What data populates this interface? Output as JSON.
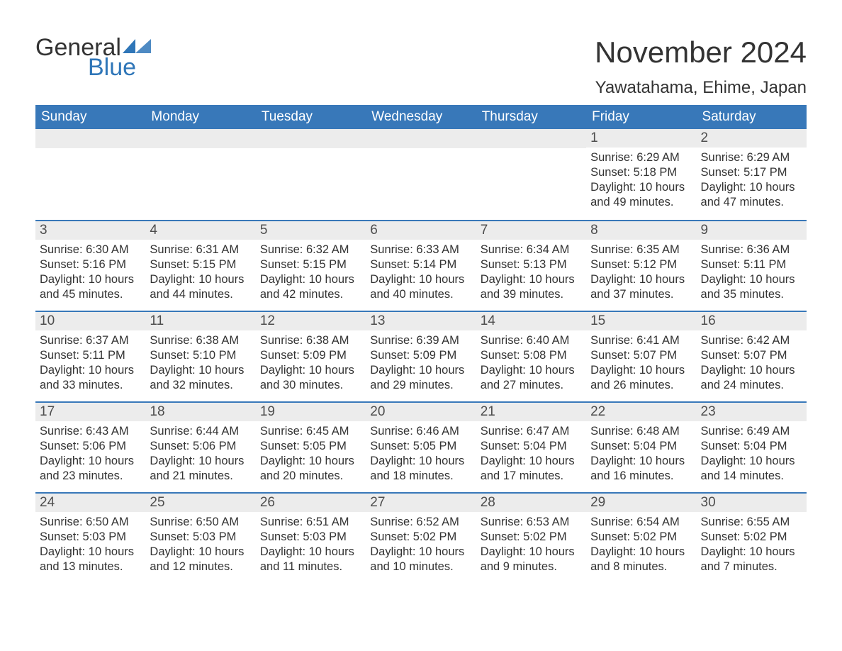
{
  "logo": {
    "word1": "General",
    "word2": "Blue",
    "word1_color": "#333333",
    "word2_color": "#2f76b8",
    "triangle_color": "#2f76b8"
  },
  "title": "November 2024",
  "location": "Yawatahama, Ehime, Japan",
  "colors": {
    "header_bg": "#3878b9",
    "header_text": "#ffffff",
    "daynum_bg": "#ececec",
    "daynum_text": "#4d4d4d",
    "body_text": "#333333",
    "rule": "#3878b9",
    "page_bg": "#ffffff"
  },
  "fonts": {
    "title_size": 42,
    "location_size": 24,
    "dow_size": 19,
    "daynum_size": 19,
    "body_size": 16.5
  },
  "days_of_week": [
    "Sunday",
    "Monday",
    "Tuesday",
    "Wednesday",
    "Thursday",
    "Friday",
    "Saturday"
  ],
  "weeks": [
    [
      {
        "day": null
      },
      {
        "day": null
      },
      {
        "day": null
      },
      {
        "day": null
      },
      {
        "day": null
      },
      {
        "day": "1",
        "sunrise": "Sunrise: 6:29 AM",
        "sunset": "Sunset: 5:18 PM",
        "daylight1": "Daylight: 10 hours",
        "daylight2": "and 49 minutes."
      },
      {
        "day": "2",
        "sunrise": "Sunrise: 6:29 AM",
        "sunset": "Sunset: 5:17 PM",
        "daylight1": "Daylight: 10 hours",
        "daylight2": "and 47 minutes."
      }
    ],
    [
      {
        "day": "3",
        "sunrise": "Sunrise: 6:30 AM",
        "sunset": "Sunset: 5:16 PM",
        "daylight1": "Daylight: 10 hours",
        "daylight2": "and 45 minutes."
      },
      {
        "day": "4",
        "sunrise": "Sunrise: 6:31 AM",
        "sunset": "Sunset: 5:15 PM",
        "daylight1": "Daylight: 10 hours",
        "daylight2": "and 44 minutes."
      },
      {
        "day": "5",
        "sunrise": "Sunrise: 6:32 AM",
        "sunset": "Sunset: 5:15 PM",
        "daylight1": "Daylight: 10 hours",
        "daylight2": "and 42 minutes."
      },
      {
        "day": "6",
        "sunrise": "Sunrise: 6:33 AM",
        "sunset": "Sunset: 5:14 PM",
        "daylight1": "Daylight: 10 hours",
        "daylight2": "and 40 minutes."
      },
      {
        "day": "7",
        "sunrise": "Sunrise: 6:34 AM",
        "sunset": "Sunset: 5:13 PM",
        "daylight1": "Daylight: 10 hours",
        "daylight2": "and 39 minutes."
      },
      {
        "day": "8",
        "sunrise": "Sunrise: 6:35 AM",
        "sunset": "Sunset: 5:12 PM",
        "daylight1": "Daylight: 10 hours",
        "daylight2": "and 37 minutes."
      },
      {
        "day": "9",
        "sunrise": "Sunrise: 6:36 AM",
        "sunset": "Sunset: 5:11 PM",
        "daylight1": "Daylight: 10 hours",
        "daylight2": "and 35 minutes."
      }
    ],
    [
      {
        "day": "10",
        "sunrise": "Sunrise: 6:37 AM",
        "sunset": "Sunset: 5:11 PM",
        "daylight1": "Daylight: 10 hours",
        "daylight2": "and 33 minutes."
      },
      {
        "day": "11",
        "sunrise": "Sunrise: 6:38 AM",
        "sunset": "Sunset: 5:10 PM",
        "daylight1": "Daylight: 10 hours",
        "daylight2": "and 32 minutes."
      },
      {
        "day": "12",
        "sunrise": "Sunrise: 6:38 AM",
        "sunset": "Sunset: 5:09 PM",
        "daylight1": "Daylight: 10 hours",
        "daylight2": "and 30 minutes."
      },
      {
        "day": "13",
        "sunrise": "Sunrise: 6:39 AM",
        "sunset": "Sunset: 5:09 PM",
        "daylight1": "Daylight: 10 hours",
        "daylight2": "and 29 minutes."
      },
      {
        "day": "14",
        "sunrise": "Sunrise: 6:40 AM",
        "sunset": "Sunset: 5:08 PM",
        "daylight1": "Daylight: 10 hours",
        "daylight2": "and 27 minutes."
      },
      {
        "day": "15",
        "sunrise": "Sunrise: 6:41 AM",
        "sunset": "Sunset: 5:07 PM",
        "daylight1": "Daylight: 10 hours",
        "daylight2": "and 26 minutes."
      },
      {
        "day": "16",
        "sunrise": "Sunrise: 6:42 AM",
        "sunset": "Sunset: 5:07 PM",
        "daylight1": "Daylight: 10 hours",
        "daylight2": "and 24 minutes."
      }
    ],
    [
      {
        "day": "17",
        "sunrise": "Sunrise: 6:43 AM",
        "sunset": "Sunset: 5:06 PM",
        "daylight1": "Daylight: 10 hours",
        "daylight2": "and 23 minutes."
      },
      {
        "day": "18",
        "sunrise": "Sunrise: 6:44 AM",
        "sunset": "Sunset: 5:06 PM",
        "daylight1": "Daylight: 10 hours",
        "daylight2": "and 21 minutes."
      },
      {
        "day": "19",
        "sunrise": "Sunrise: 6:45 AM",
        "sunset": "Sunset: 5:05 PM",
        "daylight1": "Daylight: 10 hours",
        "daylight2": "and 20 minutes."
      },
      {
        "day": "20",
        "sunrise": "Sunrise: 6:46 AM",
        "sunset": "Sunset: 5:05 PM",
        "daylight1": "Daylight: 10 hours",
        "daylight2": "and 18 minutes."
      },
      {
        "day": "21",
        "sunrise": "Sunrise: 6:47 AM",
        "sunset": "Sunset: 5:04 PM",
        "daylight1": "Daylight: 10 hours",
        "daylight2": "and 17 minutes."
      },
      {
        "day": "22",
        "sunrise": "Sunrise: 6:48 AM",
        "sunset": "Sunset: 5:04 PM",
        "daylight1": "Daylight: 10 hours",
        "daylight2": "and 16 minutes."
      },
      {
        "day": "23",
        "sunrise": "Sunrise: 6:49 AM",
        "sunset": "Sunset: 5:04 PM",
        "daylight1": "Daylight: 10 hours",
        "daylight2": "and 14 minutes."
      }
    ],
    [
      {
        "day": "24",
        "sunrise": "Sunrise: 6:50 AM",
        "sunset": "Sunset: 5:03 PM",
        "daylight1": "Daylight: 10 hours",
        "daylight2": "and 13 minutes."
      },
      {
        "day": "25",
        "sunrise": "Sunrise: 6:50 AM",
        "sunset": "Sunset: 5:03 PM",
        "daylight1": "Daylight: 10 hours",
        "daylight2": "and 12 minutes."
      },
      {
        "day": "26",
        "sunrise": "Sunrise: 6:51 AM",
        "sunset": "Sunset: 5:03 PM",
        "daylight1": "Daylight: 10 hours",
        "daylight2": "and 11 minutes."
      },
      {
        "day": "27",
        "sunrise": "Sunrise: 6:52 AM",
        "sunset": "Sunset: 5:02 PM",
        "daylight1": "Daylight: 10 hours",
        "daylight2": "and 10 minutes."
      },
      {
        "day": "28",
        "sunrise": "Sunrise: 6:53 AM",
        "sunset": "Sunset: 5:02 PM",
        "daylight1": "Daylight: 10 hours",
        "daylight2": "and 9 minutes."
      },
      {
        "day": "29",
        "sunrise": "Sunrise: 6:54 AM",
        "sunset": "Sunset: 5:02 PM",
        "daylight1": "Daylight: 10 hours",
        "daylight2": "and 8 minutes."
      },
      {
        "day": "30",
        "sunrise": "Sunrise: 6:55 AM",
        "sunset": "Sunset: 5:02 PM",
        "daylight1": "Daylight: 10 hours",
        "daylight2": "and 7 minutes."
      }
    ]
  ]
}
